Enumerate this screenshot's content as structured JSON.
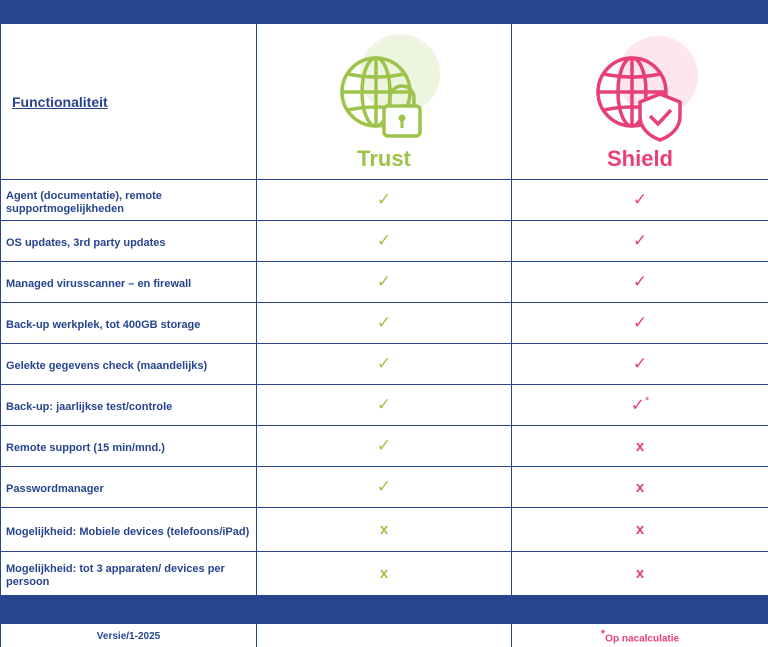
{
  "header": {
    "column_title": "Functionaliteit",
    "trust": {
      "name": "Trust",
      "color": "#9dc34a"
    },
    "shield": {
      "name": "Shield",
      "color": "#e63f7a"
    }
  },
  "rows": [
    {
      "feature": "Agent (documentatie), remote supportmogelijkheden",
      "trust": "✓",
      "shield": "✓"
    },
    {
      "feature": "OS updates, 3rd party updates",
      "trust": "✓",
      "shield": "✓"
    },
    {
      "feature": "Managed virusscanner – en firewall",
      "trust": "✓",
      "shield": "✓"
    },
    {
      "feature": "Back-up werkplek, tot 400GB storage",
      "trust": "✓",
      "shield": "✓"
    },
    {
      "feature": "Gelekte gegevens check (maandelijks)",
      "trust": "✓",
      "shield": "✓"
    },
    {
      "feature": "Back-up: jaarlijkse test/controle",
      "trust": "✓",
      "shield": "✓",
      "shield_suffix": "*"
    },
    {
      "feature": "Remote support (15 min/mnd.)",
      "trust": "✓",
      "shield": "x"
    },
    {
      "feature": "Passwordmanager",
      "trust": "✓",
      "shield": "x"
    },
    {
      "feature": "Mogelijkheid: Mobiele devices (telefoons/iPad)",
      "trust": "x",
      "shield": "x"
    },
    {
      "feature": "Mogelijkheid: tot 3 apparaten/ devices per persoon",
      "trust": "x",
      "shield": "x"
    }
  ],
  "footer": {
    "version": "Versie/1-2025",
    "note_asterisk": "*",
    "note": "Op nacalculatie"
  },
  "icons": {
    "trust": "globe-lock-icon",
    "shield": "globe-shield-icon",
    "check": "check-icon",
    "cross": "cross-icon"
  }
}
